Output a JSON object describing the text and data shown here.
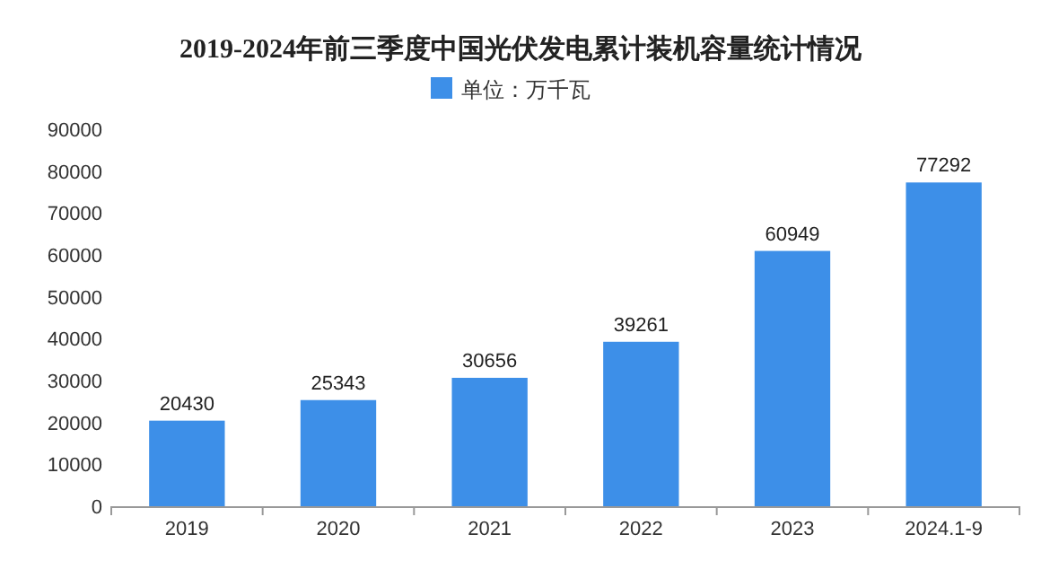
{
  "chart_data": {
    "type": "bar",
    "title": "2019-2024年前三季度中国光伏发电累计装机容量统计情况",
    "categories": [
      "2019",
      "2020",
      "2021",
      "2022",
      "2023",
      "2024.1-9"
    ],
    "series": [
      {
        "name": "单位：万千瓦",
        "color": "#3d8fe8",
        "values": [
          20430,
          25343,
          30656,
          39261,
          60949,
          77292
        ]
      }
    ],
    "ylim": [
      0,
      90000
    ],
    "yticks": [
      0,
      10000,
      20000,
      30000,
      40000,
      50000,
      60000,
      70000,
      80000,
      90000
    ],
    "grid": false,
    "legend": "top",
    "data_labels": true
  }
}
